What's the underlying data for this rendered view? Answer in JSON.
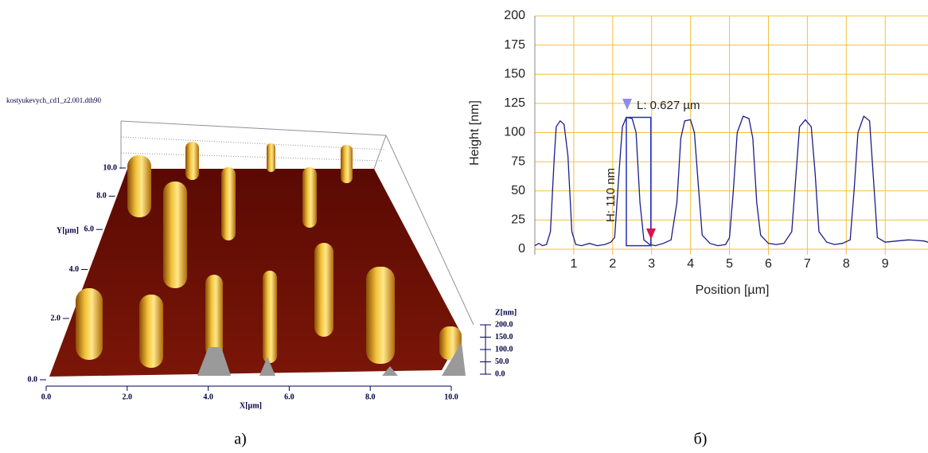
{
  "chart_data": [
    {
      "type": "surface",
      "title": "kostyukevych_cd1_z2.001.dth90",
      "caption": "а)",
      "xlabel": "X[µm]",
      "ylabel": "Y[µm]",
      "zlabel": "Z[nm]",
      "xlim": [
        0,
        10
      ],
      "ylim": [
        0,
        10
      ],
      "zlim": [
        0,
        200
      ],
      "xticks": [
        {
          "value": 0,
          "label": "0.0"
        },
        {
          "value": 2,
          "label": "2.0"
        },
        {
          "value": 4,
          "label": "4.0"
        },
        {
          "value": 6,
          "label": "6.0"
        },
        {
          "value": 8,
          "label": "8.0"
        },
        {
          "value": 10,
          "label": "10.0"
        }
      ],
      "yticks": [
        {
          "value": 0,
          "label": "0.0"
        },
        {
          "value": 2,
          "label": "2.0"
        },
        {
          "value": 4,
          "label": "4.0"
        },
        {
          "value": 6,
          "label": "6.0"
        },
        {
          "value": 8,
          "label": "8.0"
        },
        {
          "value": 10,
          "label": "10.0"
        }
      ],
      "zticks": [
        {
          "value": 0,
          "label": "0.0"
        },
        {
          "value": 50,
          "label": "50.0"
        },
        {
          "value": 100,
          "label": "100.0"
        },
        {
          "value": 150,
          "label": "150.0"
        },
        {
          "value": 200,
          "label": "200.0"
        }
      ]
    },
    {
      "type": "line",
      "caption": "б)",
      "xlabel": "Position [µm]",
      "ylabel": "Height [nm]",
      "color": "#1c1c8c",
      "grid": true,
      "grid_color": "#f0c040",
      "xlim": [
        0,
        10.1
      ],
      "ylim": [
        0,
        200
      ],
      "xticks": [
        1,
        2,
        3,
        4,
        5,
        6,
        7,
        8,
        9
      ],
      "yticks": [
        0,
        25,
        50,
        75,
        100,
        125,
        150,
        175,
        200
      ],
      "x": [
        0,
        0.1,
        0.2,
        0.3,
        0.4,
        0.5,
        0.55,
        0.65,
        0.75,
        0.85,
        0.95,
        1.05,
        1.2,
        1.4,
        1.6,
        1.8,
        1.95,
        2.05,
        2.15,
        2.25,
        2.35,
        2.5,
        2.6,
        2.7,
        2.8,
        2.95,
        3.1,
        3.3,
        3.5,
        3.65,
        3.75,
        3.85,
        4.0,
        4.1,
        4.2,
        4.3,
        4.5,
        4.7,
        4.9,
        5.0,
        5.1,
        5.2,
        5.35,
        5.5,
        5.6,
        5.7,
        5.8,
        6.0,
        6.2,
        6.4,
        6.6,
        6.7,
        6.8,
        6.95,
        7.1,
        7.2,
        7.3,
        7.5,
        7.7,
        7.9,
        8.1,
        8.2,
        8.3,
        8.45,
        8.6,
        8.7,
        8.8,
        9.0,
        9.3,
        9.6,
        10.0,
        10.1
      ],
      "values": [
        3,
        5,
        3,
        4,
        15,
        80,
        105,
        110,
        107,
        80,
        15,
        4,
        3,
        5,
        3,
        4,
        6,
        10,
        60,
        105,
        113,
        112,
        100,
        40,
        8,
        4,
        3,
        5,
        8,
        40,
        95,
        110,
        111,
        100,
        55,
        12,
        5,
        3,
        4,
        10,
        50,
        100,
        114,
        112,
        95,
        40,
        12,
        5,
        4,
        5,
        15,
        60,
        105,
        111,
        105,
        65,
        15,
        6,
        4,
        5,
        8,
        50,
        100,
        114,
        110,
        60,
        10,
        6,
        7,
        8,
        7,
        6
      ],
      "cursor": {
        "x": [
          2.35,
          2.98
        ],
        "y": [
          3,
          113
        ]
      },
      "annotations": [
        "L: 0.627 µm",
        "H: 110 nm"
      ]
    }
  ]
}
